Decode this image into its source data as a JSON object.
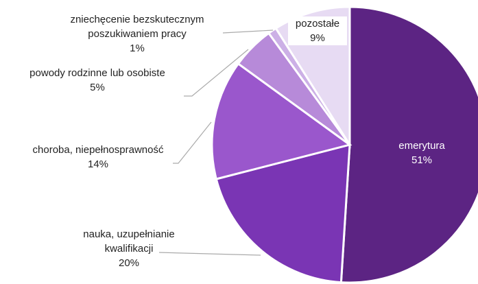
{
  "chart_data": {
    "type": "pie",
    "categories": [
      "emerytura",
      "nauka, uzupełnianie kwalifikacji",
      "choroba, niepełnosprawność",
      "powody rodzinne lub osobiste",
      "zniechęcenie bezskutecznym poszukiwaniem pracy",
      "pozostałe"
    ],
    "values": [
      51,
      20,
      14,
      5,
      1,
      9
    ],
    "value_labels": [
      "51%",
      "20%",
      "14%",
      "5%",
      "1%",
      "9%"
    ],
    "colors": [
      "#5c2483",
      "#7a35b4",
      "#9a57cc",
      "#b78ad9",
      "#ccb0e6",
      "#e7dbf3"
    ]
  }
}
